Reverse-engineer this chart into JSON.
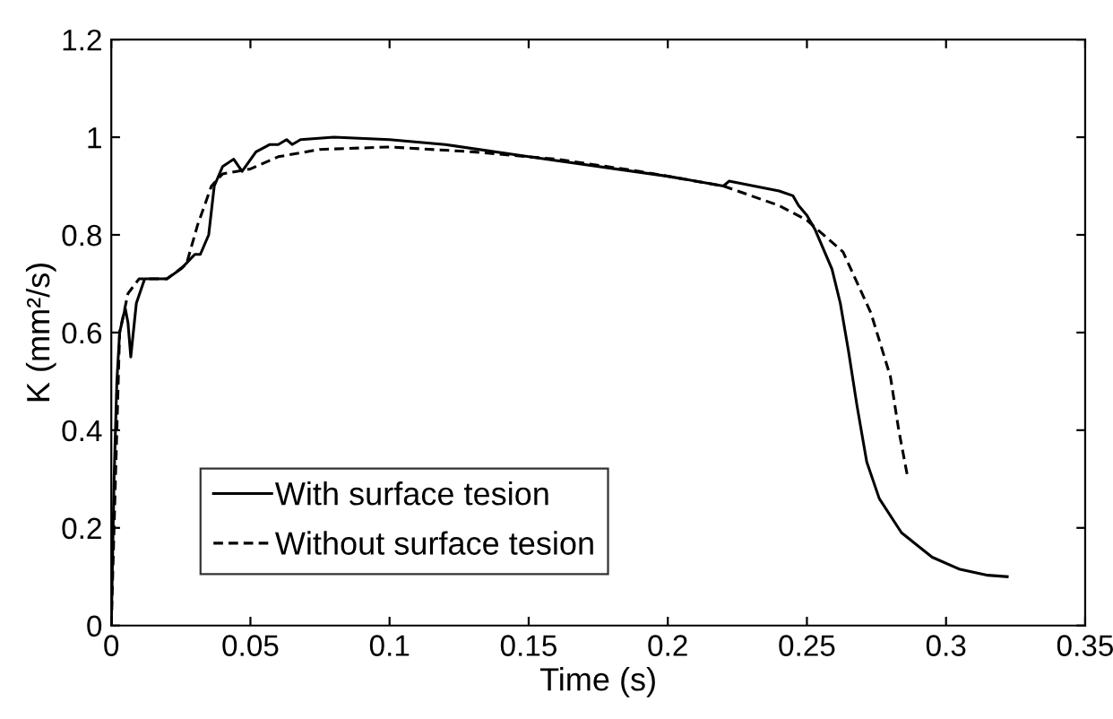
{
  "chart_data": {
    "type": "line",
    "xlabel": "Time (s)",
    "ylabel": "K (mm²/s)",
    "xlim": [
      0,
      0.35
    ],
    "ylim": [
      0,
      1.2
    ],
    "xticks": [
      0,
      0.05,
      0.1,
      0.15,
      0.2,
      0.25,
      0.3,
      0.35
    ],
    "yticks": [
      0,
      0.2,
      0.4,
      0.6,
      0.8,
      1,
      1.2
    ],
    "grid": false,
    "legend": "bottom left",
    "marker": "none",
    "series": [
      {
        "name": "With surface tesion",
        "color": "#000000",
        "line_style": "solid",
        "x": [
          0,
          0.001,
          0.002,
          0.003,
          0.005,
          0.006,
          0.007,
          0.009,
          0.012,
          0.02,
          0.025,
          0.03,
          0.032,
          0.035,
          0.037,
          0.04,
          0.044,
          0.047,
          0.052,
          0.057,
          0.06,
          0.063,
          0.065,
          0.068,
          0.08,
          0.1,
          0.12,
          0.15,
          0.2,
          0.22,
          0.222,
          0.24,
          0.245,
          0.247,
          0.25,
          0.253,
          0.259,
          0.262,
          0.265,
          0.268,
          0.2715,
          0.276,
          0.284,
          0.295,
          0.305,
          0.315,
          0.322
        ],
        "values": [
          0,
          0.3,
          0.5,
          0.6,
          0.65,
          0.62,
          0.55,
          0.66,
          0.71,
          0.71,
          0.73,
          0.76,
          0.76,
          0.8,
          0.9,
          0.94,
          0.955,
          0.93,
          0.97,
          0.985,
          0.985,
          0.995,
          0.985,
          0.995,
          1.0,
          0.995,
          0.985,
          0.96,
          0.92,
          0.9,
          0.91,
          0.89,
          0.88,
          0.86,
          0.84,
          0.81,
          0.73,
          0.66,
          0.56,
          0.45,
          0.335,
          0.26,
          0.19,
          0.14,
          0.115,
          0.103,
          0.1
        ]
      },
      {
        "name": "Without surface tesion",
        "color": "#000000",
        "line_style": "dashed",
        "x": [
          0,
          0.003,
          0.006,
          0.01,
          0.02,
          0.027,
          0.031,
          0.036,
          0.04,
          0.05,
          0.06,
          0.075,
          0.1,
          0.13,
          0.16,
          0.19,
          0.22,
          0.24,
          0.25,
          0.263,
          0.273,
          0.28,
          0.283,
          0.286
        ],
        "values": [
          0,
          0.6,
          0.68,
          0.71,
          0.71,
          0.74,
          0.82,
          0.9,
          0.925,
          0.935,
          0.96,
          0.975,
          0.98,
          0.97,
          0.955,
          0.93,
          0.9,
          0.86,
          0.83,
          0.765,
          0.64,
          0.51,
          0.4,
          0.31
        ]
      }
    ]
  }
}
